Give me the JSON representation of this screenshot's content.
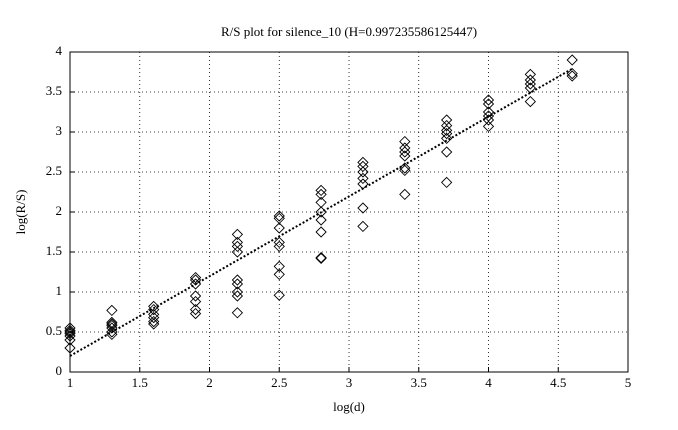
{
  "chart_data": {
    "type": "scatter",
    "title": "R/S plot for silence_10 (H=0.997235586125447)",
    "x_label": "log(d)",
    "y_label": "log(R/S)",
    "xlim": [
      1,
      5
    ],
    "ylim": [
      0,
      4
    ],
    "xticks": [
      1,
      1.5,
      2,
      2.5,
      3,
      3.5,
      4,
      4.5,
      5
    ],
    "yticks": [
      0,
      0.5,
      1,
      1.5,
      2,
      2.5,
      3,
      3.5,
      4
    ],
    "grid": true,
    "series": [
      {
        "color": "#000000",
        "x": [
          1,
          1,
          1,
          1,
          1,
          1,
          1,
          1.3,
          1.3,
          1.3,
          1.3,
          1.3,
          1.3,
          1.3,
          1.6,
          1.6,
          1.6,
          1.6,
          1.6,
          1.6,
          1.9,
          1.9,
          1.9,
          1.9,
          1.9,
          1.9,
          1.9,
          2.2,
          2.2,
          2.2,
          2.2,
          2.2,
          2.2,
          2.2,
          2.2,
          2.2,
          2.5,
          2.5,
          2.5,
          2.5,
          2.5,
          2.5,
          2.5,
          2.5,
          2.8,
          2.8,
          2.8,
          2.8,
          2.8,
          2.8,
          2.8,
          2.8,
          3.1,
          3.1,
          3.1,
          3.1,
          3.1,
          3.1,
          3.1,
          3.4,
          3.4,
          3.4,
          3.4,
          3.4,
          3.4,
          3.4,
          3.7,
          3.7,
          3.7,
          3.7,
          3.7,
          3.7,
          3.7,
          4,
          4,
          4,
          4,
          4,
          4,
          4.3,
          4.3,
          4.3,
          4.3,
          4.3,
          4.6,
          4.6,
          4.6
        ],
        "values": [
          0.3,
          0.4,
          0.45,
          0.5,
          0.52,
          0.55,
          0.48,
          0.47,
          0.5,
          0.55,
          0.58,
          0.6,
          0.62,
          0.77,
          0.6,
          0.63,
          0.68,
          0.72,
          0.78,
          0.82,
          0.73,
          0.78,
          0.88,
          0.95,
          1.1,
          1.15,
          1.18,
          0.74,
          0.95,
          1.0,
          1.1,
          1.15,
          1.5,
          1.57,
          1.62,
          1.72,
          0.96,
          1.22,
          1.32,
          1.57,
          1.62,
          1.8,
          1.92,
          1.95,
          1.42,
          1.43,
          1.75,
          1.9,
          2.0,
          2.12,
          2.22,
          2.27,
          1.82,
          2.05,
          2.35,
          2.42,
          2.5,
          2.57,
          2.62,
          2.22,
          2.52,
          2.55,
          2.7,
          2.75,
          2.8,
          2.88,
          2.37,
          2.75,
          2.92,
          2.98,
          3.02,
          3.08,
          3.15,
          3.07,
          3.15,
          3.2,
          3.25,
          3.35,
          3.4,
          3.38,
          3.55,
          3.6,
          3.65,
          3.72,
          3.7,
          3.73,
          3.9
        ]
      }
    ],
    "fit_line": {
      "x": [
        1,
        4.6
      ],
      "values": [
        0.2,
        3.79
      ]
    }
  }
}
